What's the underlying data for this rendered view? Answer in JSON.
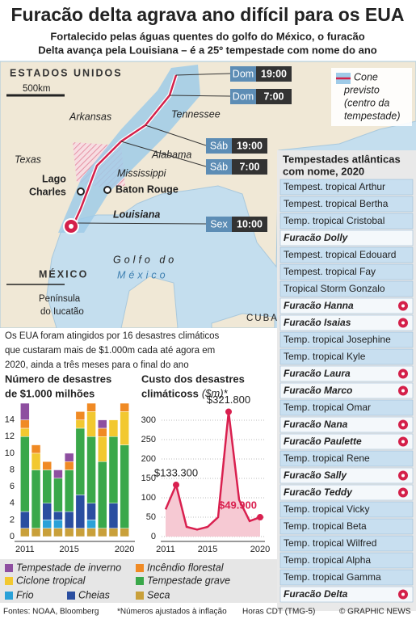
{
  "header": {
    "title": "Furacão delta agrava ano difícil para os EUA",
    "subtitle": [
      "Fortalecido pelas águas quentes do golfo do México, o furacão",
      "Delta avança pela Louisiana – é a 25º tempestade com nome do ano"
    ]
  },
  "map": {
    "labels": {
      "us": "ESTADOS UNIDOS",
      "scale": "500km",
      "arkansas": "Arkansas",
      "tennessee": "Tennessee",
      "texas": "Texas",
      "alabama": "Alabama",
      "mississippi": "Mississippi",
      "lake_charles": [
        "Lago",
        "Charles"
      ],
      "baton_rouge": "Baton Rouge",
      "louisiana": "Louisiana",
      "mexico": "MÉXICO",
      "gulf": [
        "Golfo do",
        "México"
      ],
      "yucatan": [
        "Península",
        "do Iucatão"
      ],
      "cuba": "CUBA"
    },
    "forecast": [
      {
        "day": "Dom",
        "time": "19:00"
      },
      {
        "day": "Dom",
        "time": "7:00"
      },
      {
        "day": "Sáb",
        "time": "19:00"
      },
      {
        "day": "Sáb",
        "time": "7:00"
      },
      {
        "day": "Sex",
        "time": "10:00"
      }
    ],
    "legend": [
      "Cone",
      "previsto",
      "(centro da",
      "tempestade)"
    ]
  },
  "storms": {
    "title": [
      "Tempestades atlânticas",
      "com nome, 2020"
    ],
    "rows": [
      {
        "text": "Tempest. tropical Arthur",
        "hurricane": false
      },
      {
        "text": "Tempest. tropical Bertha",
        "hurricane": false
      },
      {
        "text": "Temp. tropical Cristobal",
        "hurricane": false
      },
      {
        "text": "Furacão Dolly",
        "hurricane": true,
        "icon": false
      },
      {
        "text": "Tempest. tropical Edouard",
        "hurricane": false
      },
      {
        "text": "Tempest. tropical Fay",
        "hurricane": false
      },
      {
        "text": "Tropical Storm Gonzalo",
        "hurricane": false
      },
      {
        "text": "Furacão Hanna",
        "hurricane": true,
        "icon": true
      },
      {
        "text": "Furacão Isaias",
        "hurricane": true,
        "icon": true
      },
      {
        "text": "Temp. tropical Josephine",
        "hurricane": false
      },
      {
        "text": "Temp. tropical Kyle",
        "hurricane": false
      },
      {
        "text": "Furacão Laura",
        "hurricane": true,
        "icon": true
      },
      {
        "text": "Furacão Marco",
        "hurricane": true,
        "icon": true
      },
      {
        "text": "Temp. tropical Omar",
        "hurricane": false
      },
      {
        "text": "Furacão Nana",
        "hurricane": true,
        "icon": true
      },
      {
        "text": "Furacão Paulette",
        "hurricane": true,
        "icon": true
      },
      {
        "text": "Temp. tropical Rene",
        "hurricane": false
      },
      {
        "text": "Furacão Sally",
        "hurricane": true,
        "icon": true
      },
      {
        "text": "Furacão Teddy",
        "hurricane": true,
        "icon": true
      },
      {
        "text": "Temp. tropical Vicky",
        "hurricane": false
      },
      {
        "text": "Temp. tropical Beta",
        "hurricane": false
      },
      {
        "text": "Temp. tropical Wilfred",
        "hurricane": false
      },
      {
        "text": "Temp. tropical Alpha",
        "hurricane": false
      },
      {
        "text": "Temp. tropical Gamma",
        "hurricane": false
      },
      {
        "text": "Furacão Delta",
        "hurricane": true,
        "icon": true
      }
    ]
  },
  "intro": [
    "Os EUA foram atingidos por 16 desastres climáticos",
    "que custaram mais de $1.000m cada até agora em",
    "2020, ainda a três meses para o final do ano"
  ],
  "chart_data": [
    {
      "type": "bar",
      "stacked": true,
      "title": [
        "Número de desastres",
        "de $1.000 milhões"
      ],
      "categories": [
        "2011",
        null,
        null,
        null,
        "2015",
        null,
        null,
        null,
        null,
        "2020"
      ],
      "ylim": [
        0,
        16
      ],
      "yticks": [
        0,
        2,
        4,
        6,
        8,
        10,
        12,
        14
      ],
      "grid": false,
      "series": [
        {
          "name": "Seca",
          "color": "#c9a03a",
          "values": [
            1,
            1,
            1,
            1,
            1,
            1,
            1,
            1,
            1,
            1
          ]
        },
        {
          "name": "Frio",
          "color": "#2aa1d8",
          "values": [
            0,
            0,
            1,
            1,
            0,
            0,
            1,
            0,
            0,
            0
          ]
        },
        {
          "name": "Cheias",
          "color": "#2a4ea0",
          "values": [
            2,
            0,
            2,
            1,
            2,
            4,
            2,
            0,
            3,
            0
          ]
        },
        {
          "name": "Tempestade grave",
          "color": "#3aa84a",
          "values": [
            9,
            7,
            4,
            4,
            5,
            8,
            8,
            8,
            8,
            10
          ]
        },
        {
          "name": "Ciclone tropical",
          "color": "#f2c830",
          "values": [
            1,
            2,
            0,
            0,
            0,
            1,
            3,
            3,
            2,
            4
          ]
        },
        {
          "name": "Incêndio florestal",
          "color": "#f08a24",
          "values": [
            1,
            1,
            1,
            0,
            1,
            1,
            1,
            1,
            0,
            1
          ]
        },
        {
          "name": "Tempestade de inverno",
          "color": "#8e4fa0",
          "values": [
            2,
            0,
            0,
            1,
            1,
            0,
            0,
            1,
            0,
            0
          ]
        }
      ]
    },
    {
      "type": "line",
      "title": [
        "Custo dos desastres",
        "climáticoss"
      ],
      "unit": "($m)*",
      "categories": [
        "2011",
        null,
        null,
        null,
        "2015",
        null,
        null,
        null,
        null,
        "2020"
      ],
      "ylim": [
        0,
        330
      ],
      "yticks": [
        0,
        50,
        100,
        150,
        200,
        250,
        300
      ],
      "grid": true,
      "color": "#d9204f",
      "fill": "#f6c9d3",
      "values": [
        70,
        133.3,
        25,
        18,
        25,
        50,
        321.8,
        95,
        40,
        49.9
      ],
      "value_labels": [
        null,
        "$133.300",
        null,
        null,
        null,
        null,
        "$321.800",
        null,
        null,
        "$49.900"
      ]
    }
  ],
  "footer": {
    "sources": "Fontes: NOAA, Bloomberg",
    "note": "*Números ajustados à inflação",
    "time": "Horas CDT (TMG-5)",
    "credit": "© GRAPHIC NEWS"
  }
}
